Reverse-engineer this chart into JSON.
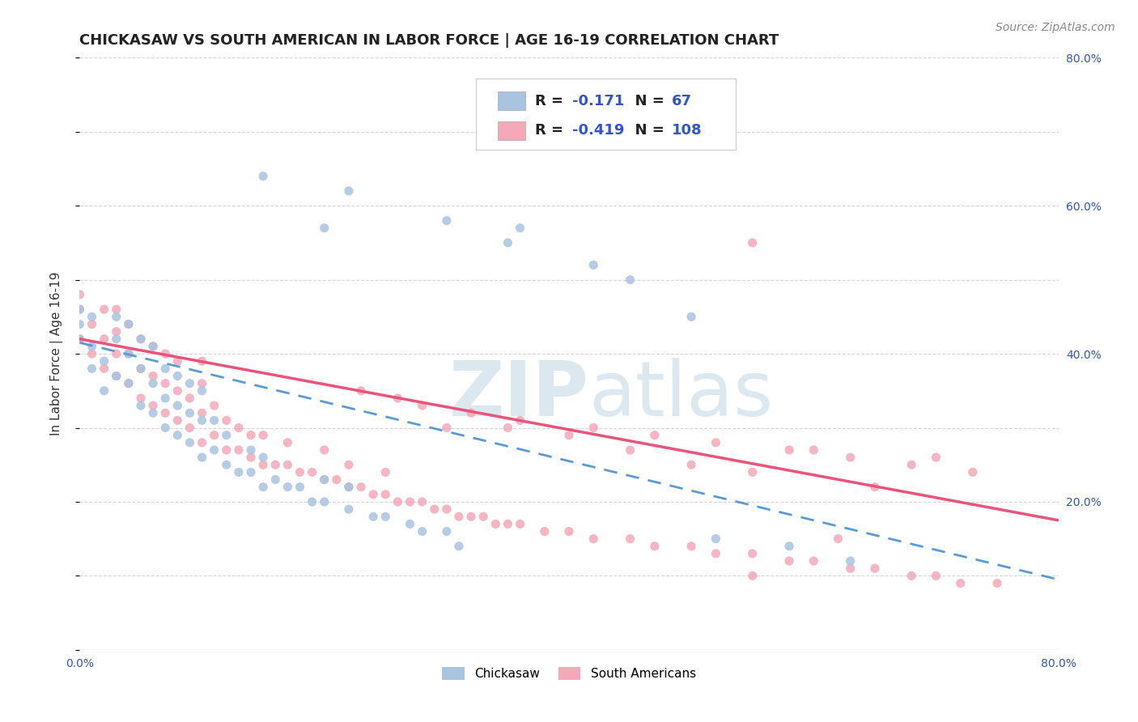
{
  "title": "CHICKASAW VS SOUTH AMERICAN IN LABOR FORCE | AGE 16-19 CORRELATION CHART",
  "source_text": "Source: ZipAtlas.com",
  "ylabel": "In Labor Force | Age 16-19",
  "xlim": [
    0.0,
    0.8
  ],
  "ylim": [
    0.0,
    0.8
  ],
  "x_ticks": [
    0.0,
    0.1,
    0.2,
    0.3,
    0.4,
    0.5,
    0.6,
    0.7,
    0.8
  ],
  "x_tick_labels": [
    "0.0%",
    "",
    "",
    "",
    "",
    "",
    "",
    "",
    "80.0%"
  ],
  "y_ticks": [
    0.0,
    0.1,
    0.2,
    0.3,
    0.4,
    0.5,
    0.6,
    0.7,
    0.8
  ],
  "y_tick_labels_right": [
    "",
    "",
    "20.0%",
    "",
    "40.0%",
    "",
    "60.0%",
    "",
    "80.0%"
  ],
  "chickasaw_color": "#a8c4e0",
  "south_american_color": "#f4a8b8",
  "chickasaw_line_color": "#5b9bd5",
  "south_american_line_color": "#e8547a",
  "R_chickasaw": -0.171,
  "N_chickasaw": 67,
  "R_south_american": -0.419,
  "N_south_american": 108,
  "watermark_zip": "ZIP",
  "watermark_atlas": "atlas",
  "watermark_color": "#d8e4f0",
  "title_fontsize": 13,
  "tick_fontsize": 10,
  "legend_fontsize": 13,
  "source_fontsize": 10,
  "background_color": "#ffffff",
  "grid_color": "#cccccc",
  "chickasaw_scatter_x": [
    0.0,
    0.0,
    0.0,
    0.01,
    0.01,
    0.01,
    0.02,
    0.02,
    0.03,
    0.03,
    0.03,
    0.04,
    0.04,
    0.04,
    0.05,
    0.05,
    0.05,
    0.06,
    0.06,
    0.06,
    0.07,
    0.07,
    0.07,
    0.08,
    0.08,
    0.08,
    0.09,
    0.09,
    0.09,
    0.1,
    0.1,
    0.1,
    0.11,
    0.11,
    0.12,
    0.12,
    0.13,
    0.14,
    0.14,
    0.15,
    0.15,
    0.16,
    0.17,
    0.18,
    0.19,
    0.2,
    0.2,
    0.22,
    0.22,
    0.24,
    0.25,
    0.27,
    0.28,
    0.3,
    0.31,
    0.15,
    0.2,
    0.22,
    0.3,
    0.35,
    0.36,
    0.42,
    0.45,
    0.5,
    0.52,
    0.58,
    0.63
  ],
  "chickasaw_scatter_y": [
    0.42,
    0.44,
    0.46,
    0.38,
    0.41,
    0.45,
    0.35,
    0.39,
    0.37,
    0.42,
    0.45,
    0.36,
    0.4,
    0.44,
    0.33,
    0.38,
    0.42,
    0.32,
    0.36,
    0.41,
    0.3,
    0.34,
    0.38,
    0.29,
    0.33,
    0.37,
    0.28,
    0.32,
    0.36,
    0.26,
    0.31,
    0.35,
    0.27,
    0.31,
    0.25,
    0.29,
    0.24,
    0.24,
    0.27,
    0.22,
    0.26,
    0.23,
    0.22,
    0.22,
    0.2,
    0.2,
    0.23,
    0.19,
    0.22,
    0.18,
    0.18,
    0.17,
    0.16,
    0.16,
    0.14,
    0.64,
    0.57,
    0.62,
    0.58,
    0.55,
    0.57,
    0.52,
    0.5,
    0.45,
    0.15,
    0.14,
    0.12
  ],
  "south_american_scatter_x": [
    0.0,
    0.0,
    0.0,
    0.01,
    0.01,
    0.02,
    0.02,
    0.02,
    0.03,
    0.03,
    0.03,
    0.03,
    0.04,
    0.04,
    0.04,
    0.05,
    0.05,
    0.05,
    0.06,
    0.06,
    0.06,
    0.07,
    0.07,
    0.07,
    0.08,
    0.08,
    0.08,
    0.09,
    0.09,
    0.1,
    0.1,
    0.1,
    0.1,
    0.11,
    0.11,
    0.12,
    0.12,
    0.13,
    0.13,
    0.14,
    0.14,
    0.15,
    0.15,
    0.16,
    0.17,
    0.17,
    0.18,
    0.19,
    0.2,
    0.2,
    0.21,
    0.22,
    0.22,
    0.23,
    0.24,
    0.25,
    0.25,
    0.26,
    0.27,
    0.28,
    0.29,
    0.3,
    0.31,
    0.32,
    0.33,
    0.34,
    0.35,
    0.36,
    0.38,
    0.4,
    0.42,
    0.45,
    0.47,
    0.5,
    0.52,
    0.55,
    0.58,
    0.6,
    0.63,
    0.65,
    0.68,
    0.7,
    0.72,
    0.75,
    0.55,
    0.6,
    0.65,
    0.7,
    0.55,
    0.62,
    0.3,
    0.35,
    0.4,
    0.45,
    0.5,
    0.55,
    0.23,
    0.26,
    0.28,
    0.32,
    0.36,
    0.42,
    0.47,
    0.52,
    0.58,
    0.63,
    0.68,
    0.73
  ],
  "south_american_scatter_y": [
    0.42,
    0.46,
    0.48,
    0.4,
    0.44,
    0.38,
    0.42,
    0.46,
    0.37,
    0.4,
    0.43,
    0.46,
    0.36,
    0.4,
    0.44,
    0.34,
    0.38,
    0.42,
    0.33,
    0.37,
    0.41,
    0.32,
    0.36,
    0.4,
    0.31,
    0.35,
    0.39,
    0.3,
    0.34,
    0.28,
    0.32,
    0.36,
    0.39,
    0.29,
    0.33,
    0.27,
    0.31,
    0.27,
    0.3,
    0.26,
    0.29,
    0.25,
    0.29,
    0.25,
    0.25,
    0.28,
    0.24,
    0.24,
    0.23,
    0.27,
    0.23,
    0.22,
    0.25,
    0.22,
    0.21,
    0.21,
    0.24,
    0.2,
    0.2,
    0.2,
    0.19,
    0.19,
    0.18,
    0.18,
    0.18,
    0.17,
    0.17,
    0.17,
    0.16,
    0.16,
    0.15,
    0.15,
    0.14,
    0.14,
    0.13,
    0.13,
    0.12,
    0.12,
    0.11,
    0.11,
    0.1,
    0.1,
    0.09,
    0.09,
    0.55,
    0.27,
    0.22,
    0.26,
    0.1,
    0.15,
    0.3,
    0.3,
    0.29,
    0.27,
    0.25,
    0.24,
    0.35,
    0.34,
    0.33,
    0.32,
    0.31,
    0.3,
    0.29,
    0.28,
    0.27,
    0.26,
    0.25,
    0.24
  ]
}
